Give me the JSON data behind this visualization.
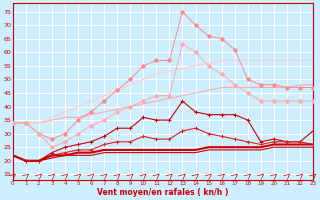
{
  "x": [
    0,
    1,
    2,
    3,
    4,
    5,
    6,
    7,
    8,
    9,
    10,
    11,
    12,
    13,
    14,
    15,
    16,
    17,
    18,
    19,
    20,
    21,
    22,
    23
  ],
  "line_pale1": [
    34,
    34,
    34,
    35,
    36,
    36,
    37,
    38,
    39,
    40,
    41,
    42,
    43,
    44,
    45,
    46,
    47,
    47,
    47,
    47,
    47,
    47,
    48,
    48
  ],
  "line_pale2": [
    34,
    34,
    34,
    36,
    38,
    40,
    42,
    44,
    46,
    48,
    50,
    52,
    53,
    54,
    55,
    56,
    57,
    57,
    57,
    57,
    57,
    57,
    57,
    57
  ],
  "line_pink_gust": [
    34,
    34,
    30,
    28,
    30,
    35,
    38,
    42,
    46,
    50,
    55,
    57,
    57,
    75,
    70,
    66,
    65,
    61,
    50,
    48,
    48,
    47,
    47,
    47
  ],
  "line_pink_avg": [
    34,
    34,
    30,
    25,
    27,
    30,
    33,
    35,
    38,
    40,
    42,
    44,
    44,
    63,
    60,
    55,
    52,
    48,
    45,
    42,
    42,
    42,
    42,
    42
  ],
  "line_red_gust": [
    22,
    20,
    20,
    23,
    25,
    26,
    27,
    29,
    32,
    32,
    36,
    35,
    35,
    42,
    38,
    37,
    37,
    37,
    35,
    27,
    28,
    27,
    27,
    31
  ],
  "line_red_avg": [
    22,
    20,
    20,
    22,
    23,
    24,
    24,
    26,
    27,
    27,
    29,
    28,
    28,
    31,
    32,
    30,
    29,
    28,
    27,
    26,
    27,
    27,
    27,
    26
  ],
  "line_bold1": [
    22,
    20,
    20,
    22,
    22,
    23,
    23,
    24,
    24,
    24,
    24,
    24,
    24,
    24,
    24,
    25,
    25,
    25,
    25,
    25,
    26,
    26,
    26,
    26
  ],
  "line_bold2": [
    22,
    20,
    20,
    21,
    22,
    22,
    22,
    23,
    23,
    23,
    23,
    23,
    23,
    23,
    23,
    24,
    24,
    24,
    24,
    24,
    25,
    25,
    25,
    25
  ],
  "bg_color": "#cceeff",
  "grid_color": "#aaddcc",
  "xlabel": "Vent moyen/en rafales ( kn/h )",
  "ylim": [
    13,
    78
  ],
  "xlim": [
    0,
    23
  ],
  "yticks": [
    15,
    20,
    25,
    30,
    35,
    40,
    45,
    50,
    55,
    60,
    65,
    70,
    75
  ],
  "xticks": [
    0,
    1,
    2,
    3,
    4,
    5,
    6,
    7,
    8,
    9,
    10,
    11,
    12,
    13,
    14,
    15,
    16,
    17,
    18,
    19,
    20,
    21,
    22,
    23
  ]
}
